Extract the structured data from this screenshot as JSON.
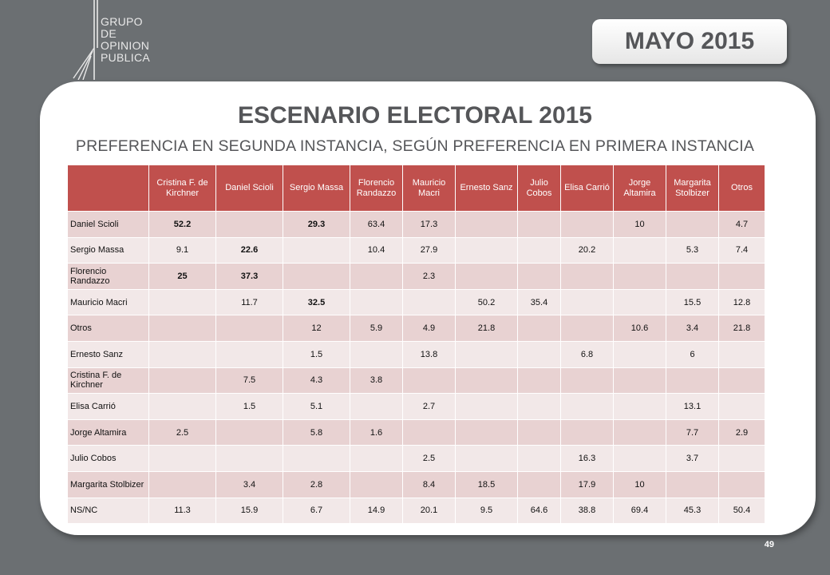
{
  "logo": {
    "lines": [
      "GRUPO",
      "DE",
      "OPINION",
      "PUBLICA"
    ]
  },
  "badge": "MAYO 2015",
  "title": "ESCENARIO ELECTORAL 2015",
  "subtitle": "PREFERENCIA EN SEGUNDA INSTANCIA, SEGÚN PREFERENCIA EN PRIMERA INSTANCIA",
  "table": {
    "headers": [
      "",
      "Cristina F. de Kirchner",
      "Daniel Scioli",
      "Sergio Massa",
      "Florencio Randazzo",
      "Mauricio Macri",
      "Ernesto Sanz",
      "Julio Cobos",
      "Elisa Carrió",
      "Jorge Altamira",
      "Margarita Stolbizer",
      "Otros"
    ],
    "rows": [
      {
        "label": "Daniel Scioli",
        "cells": [
          "52.2",
          "",
          "29.3",
          "63.4",
          "17.3",
          "",
          "",
          "",
          "10",
          "",
          "4.7"
        ],
        "bold": [
          0,
          2
        ]
      },
      {
        "label": "Sergio Massa",
        "cells": [
          "9.1",
          "22.6",
          "",
          "10.4",
          "27.9",
          "",
          "",
          "20.2",
          "",
          "5.3",
          "7.4"
        ],
        "bold": [
          1
        ]
      },
      {
        "label": "Florencio Randazzo",
        "cells": [
          "25",
          "37.3",
          "",
          "",
          "2.3",
          "",
          "",
          "",
          "",
          "",
          ""
        ],
        "bold": [
          0,
          1
        ]
      },
      {
        "label": "Mauricio Macri",
        "cells": [
          "",
          "11.7",
          "32.5",
          "",
          "",
          "50.2",
          "35.4",
          "",
          "",
          "15.5",
          "12.8"
        ],
        "bold": [
          2
        ]
      },
      {
        "label": "Otros",
        "cells": [
          "",
          "",
          "12",
          "5.9",
          "4.9",
          "21.8",
          "",
          "",
          "10.6",
          "3.4",
          "21.8"
        ],
        "bold": []
      },
      {
        "label": "Ernesto Sanz",
        "cells": [
          "",
          "",
          "1.5",
          "",
          "13.8",
          "",
          "",
          "6.8",
          "",
          "6",
          ""
        ],
        "bold": []
      },
      {
        "label": "Cristina F. de Kirchner",
        "cells": [
          "",
          "7.5",
          "4.3",
          "3.8",
          "",
          "",
          "",
          "",
          "",
          "",
          ""
        ],
        "bold": []
      },
      {
        "label": "Elisa Carrió",
        "cells": [
          "",
          "1.5",
          "5.1",
          "",
          "2.7",
          "",
          "",
          "",
          "",
          "13.1",
          ""
        ],
        "bold": []
      },
      {
        "label": "Jorge Altamira",
        "cells": [
          "2.5",
          "",
          "5.8",
          "1.6",
          "",
          "",
          "",
          "",
          "",
          "7.7",
          "2.9"
        ],
        "bold": []
      },
      {
        "label": "Julio Cobos",
        "cells": [
          "",
          "",
          "",
          "",
          "2.5",
          "",
          "",
          "16.3",
          "",
          "3.7",
          ""
        ],
        "bold": []
      },
      {
        "label": "Margarita Stolbizer",
        "cells": [
          "",
          "3.4",
          "2.8",
          "",
          "8.4",
          "18.5",
          "",
          "17.9",
          "10",
          "",
          ""
        ],
        "bold": []
      },
      {
        "label": "NS/NC",
        "cells": [
          "11.3",
          "15.9",
          "6.7",
          "14.9",
          "20.1",
          "9.5",
          "64.6",
          "38.8",
          "69.4",
          "45.3",
          "50.4"
        ],
        "bold": []
      }
    ]
  },
  "page_number": "49",
  "colors": {
    "background": "#6b6f72",
    "header": "#c0504d",
    "row_dark": "#e8d2d2",
    "row_light": "#f2e8e8",
    "text": "#555659"
  }
}
